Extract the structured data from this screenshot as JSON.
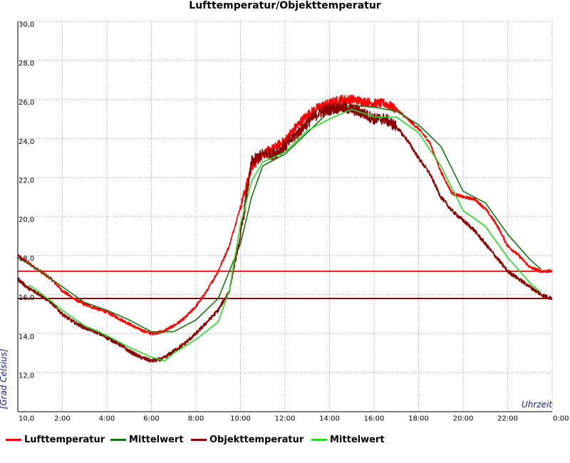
{
  "colors": {
    "lufttemperatur": "#ff0000",
    "mittelwert_luft": "#117711",
    "objekttemperatur": "#8b0000",
    "mittelwert_objekt": "#22dd22",
    "grid": "#888888",
    "axis_label": "#1a1a99"
  },
  "chart_data": {
    "type": "line",
    "title": "Lufttemperatur/Objekttemperatur",
    "xlabel": "Uhrzeit",
    "ylabel": "[Grad Celsius]",
    "xlim": [
      0,
      24
    ],
    "ylim": [
      10,
      30
    ],
    "grid": true,
    "legend_position": "bottom",
    "x_ticks": [
      {
        "x": 0,
        "label": "10,0"
      },
      {
        "x": 2,
        "label": "2:00"
      },
      {
        "x": 4,
        "label": "4:00"
      },
      {
        "x": 6,
        "label": "6:00"
      },
      {
        "x": 8,
        "label": "8:00"
      },
      {
        "x": 10,
        "label": "10:00"
      },
      {
        "x": 12,
        "label": "12:00"
      },
      {
        "x": 14,
        "label": "14:00"
      },
      {
        "x": 16,
        "label": "16:00"
      },
      {
        "x": 18,
        "label": "18:00"
      },
      {
        "x": 20,
        "label": "20:00"
      },
      {
        "x": 22,
        "label": "22:00"
      },
      {
        "x": 24,
        "label": "0:00"
      }
    ],
    "y_ticks": [
      {
        "y": 12,
        "label": "12,0"
      },
      {
        "y": 14,
        "label": "14,0"
      },
      {
        "y": 16,
        "label": "16,0"
      },
      {
        "y": 18,
        "label": "18,0"
      },
      {
        "y": 20,
        "label": "20,0"
      },
      {
        "y": 22,
        "label": "22,0"
      },
      {
        "y": 24,
        "label": "24,0"
      },
      {
        "y": 26,
        "label": "26,0"
      },
      {
        "y": 28,
        "label": "28,0"
      },
      {
        "y": 30,
        "label": "30,0"
      }
    ],
    "reference_lines": [
      {
        "y": 17.2,
        "color": "#cc0000"
      },
      {
        "y": 15.8,
        "color": "#7a0000"
      }
    ],
    "series": [
      {
        "name": "Lufttemperatur",
        "color": "#ff0000",
        "width": 1.6,
        "noise": 0.08,
        "x": [
          0,
          0.5,
          1,
          1.5,
          2,
          2.5,
          3,
          3.5,
          4,
          4.5,
          5,
          5.5,
          6,
          6.5,
          7,
          7.5,
          8,
          8.5,
          9,
          9.5,
          10,
          10.5,
          11,
          11.5,
          12,
          12.5,
          13,
          13.5,
          14,
          14.5,
          15,
          15.5,
          16,
          16.5,
          17,
          17.5,
          18,
          18.5,
          19,
          19.5,
          20,
          20.5,
          21,
          21.5,
          22,
          22.5,
          23,
          23.5,
          24
        ],
        "y": [
          18.0,
          17.6,
          17.2,
          16.8,
          16.2,
          15.8,
          15.5,
          15.3,
          15.1,
          14.8,
          14.5,
          14.2,
          14.0,
          14.1,
          14.4,
          14.8,
          15.4,
          16.2,
          17.2,
          18.5,
          20.5,
          22.5,
          23.2,
          23.5,
          23.9,
          24.6,
          25.2,
          25.6,
          25.8,
          26.0,
          26.0,
          25.9,
          25.8,
          25.8,
          25.5,
          25.0,
          24.5,
          23.8,
          22.3,
          21.2,
          21.0,
          20.9,
          20.4,
          19.6,
          18.5,
          18.0,
          17.4,
          17.2,
          17.2
        ]
      },
      {
        "name": "Mittelwert",
        "color": "#117711",
        "width": 1.6,
        "noise": 0,
        "x": [
          0,
          1,
          2,
          3,
          4,
          5,
          6,
          7,
          8,
          9,
          10,
          10.5,
          11,
          12,
          13,
          14,
          15,
          16,
          17,
          18,
          19,
          20,
          21,
          22,
          23,
          23.5
        ],
        "y": [
          17.9,
          17.2,
          16.4,
          15.6,
          15.2,
          14.7,
          14.1,
          14.1,
          14.7,
          15.8,
          18.6,
          21.0,
          22.6,
          23.2,
          24.3,
          25.4,
          25.7,
          25.6,
          25.4,
          24.7,
          23.6,
          21.3,
          20.7,
          19.1,
          17.8,
          17.3
        ]
      },
      {
        "name": "Objekttemperatur",
        "color": "#8b0000",
        "width": 1.6,
        "noise": 0.1,
        "x": [
          0,
          0.5,
          1,
          1.5,
          2,
          2.5,
          3,
          3.5,
          4,
          4.5,
          5,
          5.5,
          6,
          6.5,
          7,
          7.5,
          8,
          8.5,
          9,
          9.5,
          10,
          10.5,
          11,
          11.5,
          12,
          12.5,
          13,
          13.5,
          14,
          14.5,
          15,
          15.5,
          16,
          16.5,
          17,
          17.5,
          18,
          18.5,
          19,
          19.5,
          20,
          20.5,
          21,
          21.5,
          22,
          22.5,
          23,
          23.5,
          24
        ],
        "y": [
          16.8,
          16.3,
          16.0,
          15.6,
          15.0,
          14.6,
          14.3,
          14.1,
          13.8,
          13.5,
          13.1,
          12.8,
          12.6,
          12.7,
          13.1,
          13.5,
          14.0,
          14.6,
          15.2,
          16.2,
          19.0,
          22.8,
          23.2,
          23.2,
          23.6,
          24.2,
          24.8,
          25.3,
          25.5,
          25.6,
          25.5,
          25.3,
          25.0,
          25.0,
          24.6,
          23.9,
          23.0,
          22.2,
          21.0,
          20.3,
          19.8,
          19.3,
          18.6,
          17.9,
          17.2,
          16.8,
          16.4,
          16.0,
          15.8
        ]
      },
      {
        "name": "Mittelwert",
        "color": "#22dd22",
        "width": 1.6,
        "noise": 0,
        "x": [
          0.5,
          1,
          2,
          3,
          4,
          5,
          6,
          6.6,
          7,
          8,
          9,
          9.5,
          10,
          10.5,
          11,
          12,
          13,
          14,
          15,
          16,
          17,
          18,
          19,
          20,
          21,
          22,
          23,
          23.5
        ],
        "y": [
          16.5,
          16.1,
          15.2,
          14.4,
          13.9,
          13.3,
          12.8,
          12.6,
          13.0,
          13.7,
          14.6,
          16.2,
          19.6,
          21.8,
          22.8,
          23.3,
          24.4,
          25.0,
          25.5,
          25.1,
          25.1,
          24.3,
          22.6,
          20.3,
          19.5,
          17.9,
          16.6,
          16.1
        ]
      }
    ]
  },
  "legend": [
    {
      "label": "Lufttemperatur",
      "color": "#ff0000"
    },
    {
      "label": "Mittelwert",
      "color": "#117711"
    },
    {
      "label": "Objekttemperatur",
      "color": "#8b0000"
    },
    {
      "label": "Mittelwert",
      "color": "#22dd22"
    }
  ]
}
